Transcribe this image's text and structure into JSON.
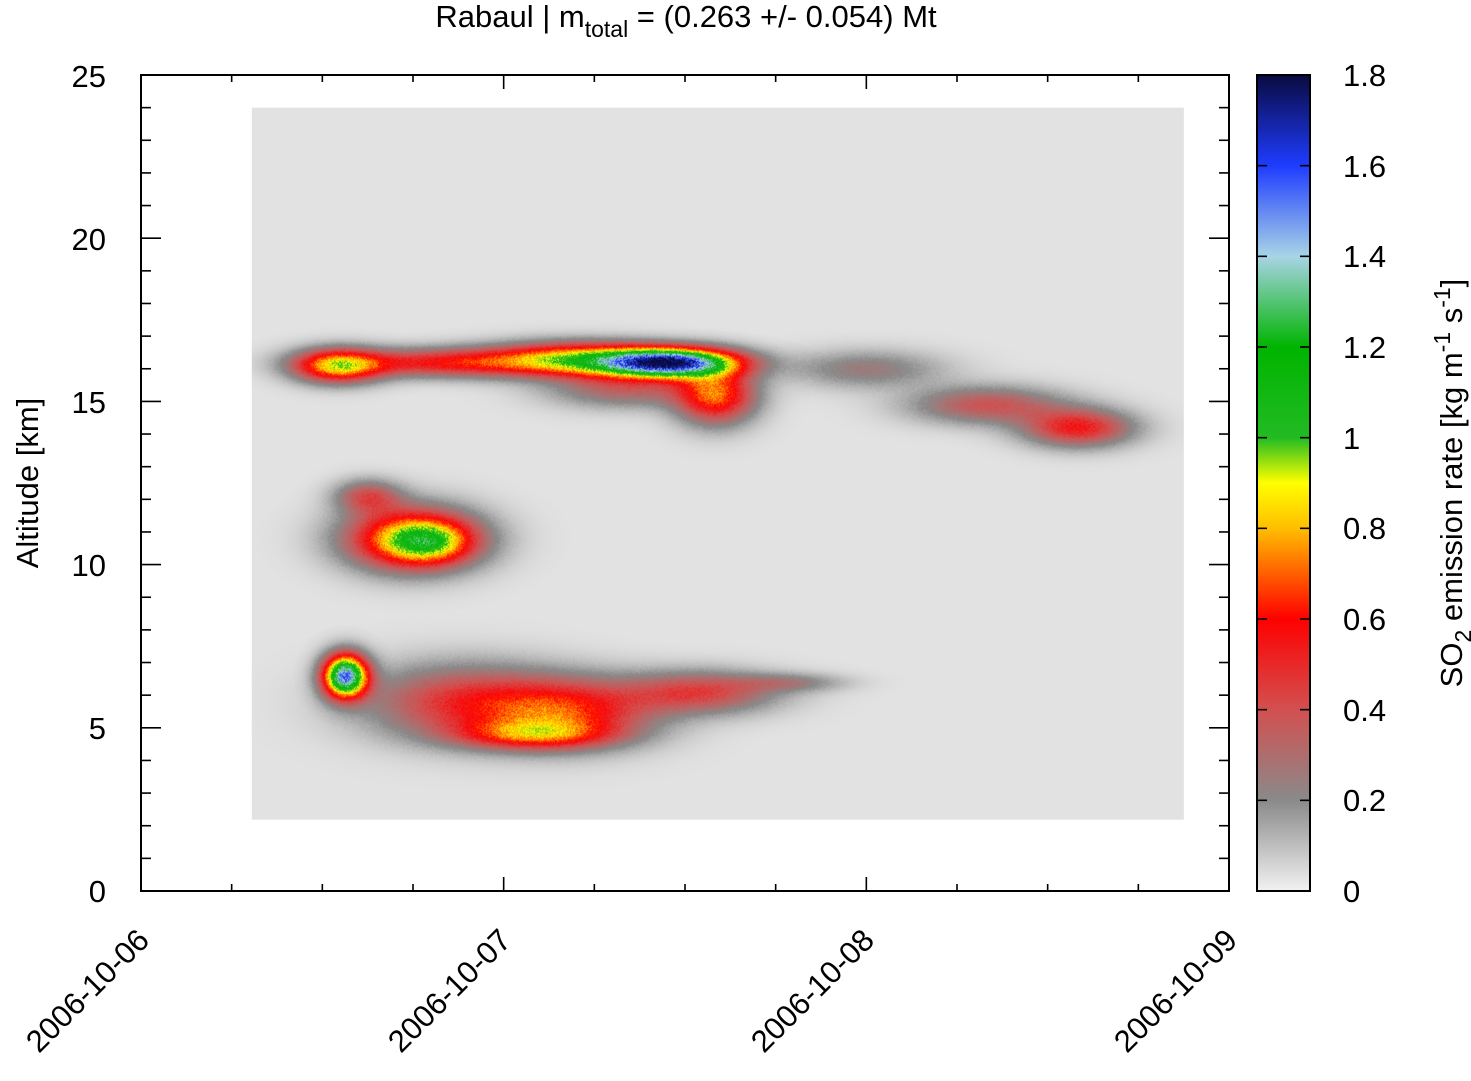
{
  "chart_data": {
    "type": "heatmap",
    "title": {
      "prefix": "Rabaul | m",
      "subscript": "total",
      "suffix": " = (0.263 +/- 0.054) Mt"
    },
    "xlabel": "",
    "ylabel": "Altitude [km]",
    "x_ticks": [
      "2006-10-06",
      "2006-10-07",
      "2006-10-08",
      "2006-10-09"
    ],
    "x_range": [
      "2006-10-06",
      "2006-10-09"
    ],
    "y_ticks": [
      "0",
      "5",
      "10",
      "15",
      "20",
      "25"
    ],
    "ylim": [
      0,
      25
    ],
    "data_extent": {
      "x": [
        "2006-10-06T07:20",
        "2006-10-08T21:00"
      ],
      "y": [
        2.2,
        24.0
      ]
    },
    "background_value": 0.03,
    "colorbar": {
      "label": {
        "prefix": "SO",
        "sub": "2",
        "middle": " emission rate [kg m",
        "sup1": "-1",
        "gap": " s",
        "sup2": "-1",
        "suffix": "]"
      },
      "ticks": [
        "0",
        "0.2",
        "0.4",
        "0.6",
        "0.8",
        "1",
        "1.2",
        "1.4",
        "1.6",
        "1.8"
      ],
      "range": [
        0,
        1.8
      ],
      "stops": [
        {
          "v": 0.0,
          "color": "#f2f2f2"
        },
        {
          "v": 0.2,
          "color": "#8a8a8a"
        },
        {
          "v": 0.4,
          "color": "#d25050"
        },
        {
          "v": 0.6,
          "color": "#ff0000"
        },
        {
          "v": 0.8,
          "color": "#ffbe00"
        },
        {
          "v": 0.9,
          "color": "#ffff00"
        },
        {
          "v": 1.0,
          "color": "#22bb22"
        },
        {
          "v": 1.2,
          "color": "#00b400"
        },
        {
          "v": 1.4,
          "color": "#a8d4e6"
        },
        {
          "v": 1.6,
          "color": "#1e3cff"
        },
        {
          "v": 1.8,
          "color": "#0a0a40"
        }
      ]
    },
    "plumes": [
      {
        "name": "upper-band-west",
        "x": "2006-10-06T13:00",
        "y": 16.1,
        "sx_h": 2.0,
        "sy_km": 0.35,
        "peak": 0.75
      },
      {
        "name": "upper-band-west-tail",
        "x": "2006-10-06T20:00",
        "y": 16.2,
        "sx_h": 5.0,
        "sy_km": 0.3,
        "peak": 0.5
      },
      {
        "name": "upper-band-mid",
        "x": "2006-10-07T05:00",
        "y": 16.3,
        "sx_h": 4.0,
        "sy_km": 0.35,
        "peak": 0.8
      },
      {
        "name": "upper-band-core",
        "x": "2006-10-07T11:00",
        "y": 16.2,
        "sx_h": 3.0,
        "sy_km": 0.3,
        "peak": 1.55
      },
      {
        "name": "upper-band-drop",
        "x": "2006-10-07T14:00",
        "y": 15.2,
        "sx_h": 1.8,
        "sy_km": 0.6,
        "peak": 0.65
      },
      {
        "name": "upper-band-under",
        "x": "2006-10-07T08:00",
        "y": 15.4,
        "sx_h": 3.5,
        "sy_km": 0.4,
        "peak": 0.3
      },
      {
        "name": "upper-tail-1",
        "x": "2006-10-08T00:00",
        "y": 16.0,
        "sx_h": 3.5,
        "sy_km": 0.4,
        "peak": 0.22
      },
      {
        "name": "upper-tail-2",
        "x": "2006-10-08T08:00",
        "y": 14.9,
        "sx_h": 3.5,
        "sy_km": 0.4,
        "peak": 0.35
      },
      {
        "name": "upper-tail-3",
        "x": "2006-10-08T14:00",
        "y": 14.2,
        "sx_h": 2.5,
        "sy_km": 0.4,
        "peak": 0.5
      },
      {
        "name": "mid-blob",
        "x": "2006-10-06T18:00",
        "y": 10.8,
        "sx_h": 3.0,
        "sy_km": 0.65,
        "peak": 0.85
      },
      {
        "name": "mid-blob-core",
        "x": "2006-10-06T19:00",
        "y": 10.7,
        "sx_h": 1.8,
        "sy_km": 0.4,
        "peak": 0.4
      },
      {
        "name": "mid-blob-top",
        "x": "2006-10-06T15:00",
        "y": 12.1,
        "sx_h": 1.5,
        "sy_km": 0.35,
        "peak": 0.35
      },
      {
        "name": "low-spot",
        "x": "2006-10-06T13:30",
        "y": 6.6,
        "sx_h": 1.0,
        "sy_km": 0.45,
        "peak": 1.45
      },
      {
        "name": "low-band-west",
        "x": "2006-10-06T21:00",
        "y": 5.8,
        "sx_h": 4.5,
        "sy_km": 0.8,
        "peak": 0.4
      },
      {
        "name": "low-band-core",
        "x": "2006-10-07T04:00",
        "y": 5.5,
        "sx_h": 4.0,
        "sy_km": 0.7,
        "peak": 0.55
      },
      {
        "name": "low-band-east",
        "x": "2006-10-07T13:00",
        "y": 6.1,
        "sx_h": 3.5,
        "sy_km": 0.45,
        "peak": 0.4
      },
      {
        "name": "low-band-tail",
        "x": "2006-10-07T19:00",
        "y": 6.4,
        "sx_h": 2.5,
        "sy_km": 0.2,
        "peak": 0.18
      },
      {
        "name": "low-band-base",
        "x": "2006-10-07T02:00",
        "y": 4.8,
        "sx_h": 3.5,
        "sy_km": 0.3,
        "peak": 0.45
      }
    ]
  }
}
